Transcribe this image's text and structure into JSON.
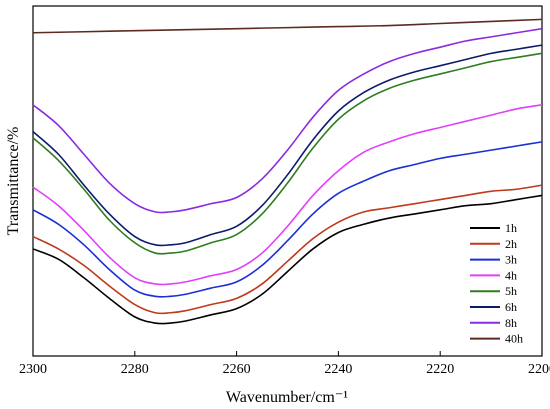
{
  "chart_data": {
    "type": "line",
    "xlabel": "Wavenumber/cm⁻¹",
    "ylabel": "Transmittance/%",
    "xlim": [
      2300,
      2200
    ],
    "xticks": [
      "2300",
      "2280",
      "2260",
      "2240",
      "2220",
      "2200"
    ],
    "grid": false,
    "legend_position": "bottom-right",
    "series": [
      {
        "name": "1h",
        "color": "#000000",
        "x": [
          2300,
          2295,
          2290,
          2285,
          2280,
          2276,
          2273,
          2270,
          2265,
          2260,
          2255,
          2250,
          2245,
          2240,
          2235,
          2230,
          2225,
          2220,
          2215,
          2210,
          2205,
          2200
        ],
        "y": [
          -3.8,
          -4.3,
          -5.2,
          -6.2,
          -7.1,
          -7.4,
          -7.4,
          -7.3,
          -7.0,
          -6.7,
          -6.0,
          -4.9,
          -3.8,
          -3.0,
          -2.6,
          -2.3,
          -2.1,
          -1.9,
          -1.7,
          -1.6,
          -1.4,
          -1.2
        ]
      },
      {
        "name": "2h",
        "color": "#c0391b",
        "x": [
          2300,
          2295,
          2290,
          2285,
          2280,
          2276,
          2273,
          2270,
          2265,
          2260,
          2255,
          2250,
          2245,
          2240,
          2235,
          2230,
          2225,
          2220,
          2215,
          2210,
          2205,
          2200
        ],
        "y": [
          -3.2,
          -3.8,
          -4.6,
          -5.6,
          -6.5,
          -6.9,
          -6.9,
          -6.8,
          -6.5,
          -6.2,
          -5.5,
          -4.4,
          -3.3,
          -2.5,
          -2.0,
          -1.8,
          -1.6,
          -1.4,
          -1.2,
          -1.0,
          -0.9,
          -0.7
        ]
      },
      {
        "name": "3h",
        "color": "#1a2fd6",
        "x": [
          2300,
          2295,
          2290,
          2285,
          2280,
          2276,
          2273,
          2270,
          2265,
          2260,
          2255,
          2250,
          2245,
          2240,
          2235,
          2230,
          2225,
          2220,
          2215,
          2210,
          2205,
          2200
        ],
        "y": [
          -1.9,
          -2.6,
          -3.6,
          -4.8,
          -5.8,
          -6.1,
          -6.1,
          -6.0,
          -5.7,
          -5.4,
          -4.6,
          -3.4,
          -2.1,
          -1.1,
          -0.5,
          0.0,
          0.3,
          0.6,
          0.8,
          1.0,
          1.2,
          1.4
        ]
      },
      {
        "name": "4h",
        "color": "#e040fb",
        "x": [
          2300,
          2295,
          2290,
          2285,
          2280,
          2276,
          2273,
          2270,
          2265,
          2260,
          2255,
          2250,
          2245,
          2240,
          2235,
          2230,
          2225,
          2220,
          2215,
          2210,
          2205,
          2200
        ],
        "y": [
          -0.8,
          -1.7,
          -2.9,
          -4.2,
          -5.2,
          -5.5,
          -5.5,
          -5.4,
          -5.1,
          -4.8,
          -4.0,
          -2.7,
          -1.2,
          0.0,
          0.9,
          1.4,
          1.8,
          2.1,
          2.4,
          2.7,
          3.0,
          3.2
        ]
      },
      {
        "name": "5h",
        "color": "#2e7d1f",
        "x": [
          2300,
          2295,
          2290,
          2285,
          2280,
          2276,
          2273,
          2270,
          2265,
          2260,
          2255,
          2250,
          2245,
          2240,
          2235,
          2230,
          2225,
          2220,
          2215,
          2210,
          2205,
          2200
        ],
        "y": [
          1.6,
          0.5,
          -0.9,
          -2.4,
          -3.5,
          -4.0,
          -4.0,
          -3.9,
          -3.5,
          -3.1,
          -2.1,
          -0.6,
          1.1,
          2.5,
          3.4,
          4.0,
          4.4,
          4.7,
          5.0,
          5.3,
          5.5,
          5.7
        ]
      },
      {
        "name": "6h",
        "color": "#0d1a6b",
        "x": [
          2300,
          2295,
          2290,
          2285,
          2280,
          2276,
          2273,
          2270,
          2265,
          2260,
          2255,
          2250,
          2245,
          2240,
          2235,
          2230,
          2225,
          2220,
          2215,
          2210,
          2205,
          2200
        ],
        "y": [
          1.9,
          0.8,
          -0.7,
          -2.1,
          -3.2,
          -3.6,
          -3.6,
          -3.5,
          -3.1,
          -2.7,
          -1.7,
          -0.2,
          1.5,
          2.9,
          3.8,
          4.4,
          4.8,
          5.1,
          5.4,
          5.7,
          5.9,
          6.1
        ]
      },
      {
        "name": "8h",
        "color": "#8a2be2",
        "x": [
          2300,
          2295,
          2290,
          2285,
          2280,
          2276,
          2273,
          2270,
          2265,
          2260,
          2255,
          2250,
          2245,
          2240,
          2235,
          2230,
          2225,
          2220,
          2215,
          2210,
          2205,
          2200
        ],
        "y": [
          3.2,
          2.2,
          0.8,
          -0.6,
          -1.6,
          -2.0,
          -2.0,
          -1.9,
          -1.6,
          -1.3,
          -0.4,
          1.0,
          2.6,
          3.9,
          4.7,
          5.3,
          5.7,
          6.0,
          6.3,
          6.5,
          6.7,
          6.9
        ]
      },
      {
        "name": "40h",
        "color": "#5c2a1f",
        "x": [
          2300,
          2290,
          2280,
          2270,
          2260,
          2250,
          2240,
          2230,
          2220,
          2210,
          2200
        ],
        "y": [
          6.7,
          6.75,
          6.8,
          6.85,
          6.9,
          6.95,
          7.0,
          7.05,
          7.15,
          7.25,
          7.35
        ]
      }
    ]
  }
}
